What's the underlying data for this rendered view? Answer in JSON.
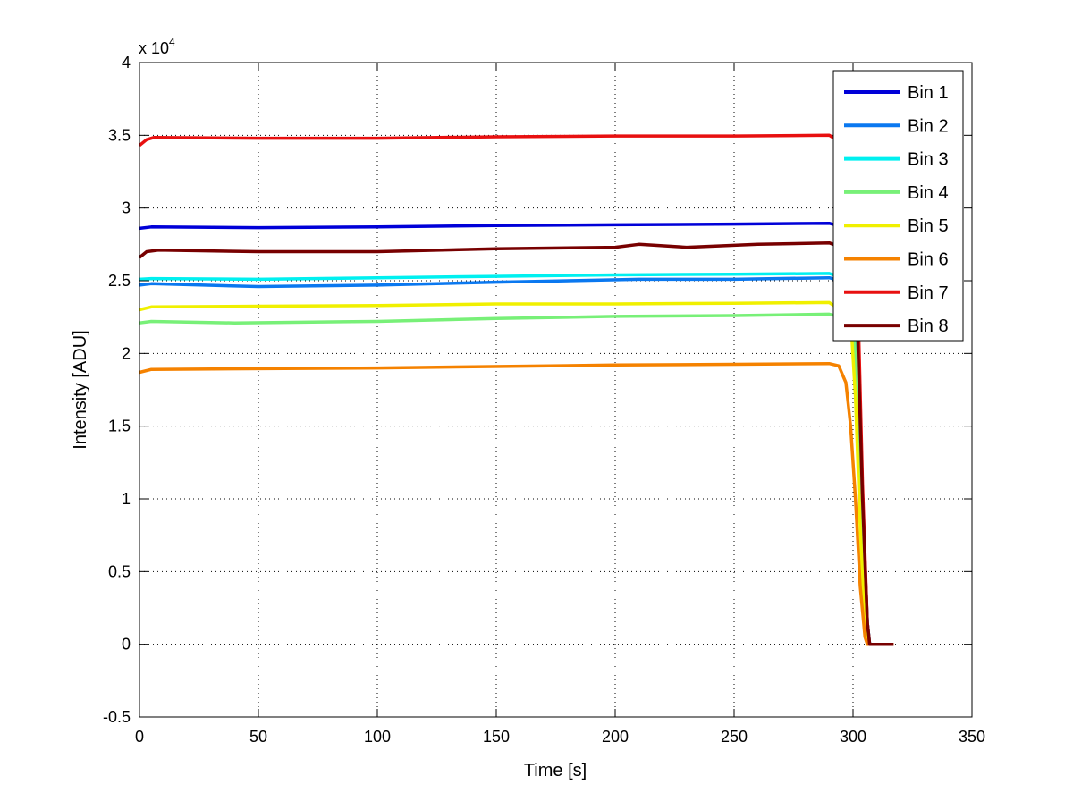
{
  "chart_data": {
    "type": "line",
    "title": "",
    "xlabel": "Time [s]",
    "ylabel": "Intensity [ADU]",
    "y_exponent_label": "x 10",
    "y_exponent": "4",
    "xlim": [
      0,
      350
    ],
    "ylim": [
      -5000,
      40000
    ],
    "xticks": [
      0,
      50,
      100,
      150,
      200,
      250,
      300,
      350
    ],
    "xtick_labels": [
      "0",
      "50",
      "100",
      "150",
      "200",
      "250",
      "300",
      "350"
    ],
    "yticks": [
      -5000,
      0,
      5000,
      10000,
      15000,
      20000,
      25000,
      30000,
      35000,
      40000
    ],
    "ytick_labels": [
      "-0.5",
      "0",
      "0.5",
      "1",
      "1.5",
      "2",
      "2.5",
      "3",
      "3.5",
      "4"
    ],
    "grid": true,
    "legend_position": "top-right",
    "series": [
      {
        "name": "Bin 1",
        "color": "#0000d8",
        "x": [
          0,
          5,
          50,
          100,
          150,
          200,
          250,
          290,
          300,
          302,
          304,
          306,
          307,
          317
        ],
        "y": [
          28600,
          28700,
          28650,
          28700,
          28800,
          28850,
          28900,
          28950,
          28500,
          22000,
          10000,
          1500,
          0,
          0
        ]
      },
      {
        "name": "Bin 2",
        "color": "#0a78f0",
        "x": [
          0,
          5,
          50,
          100,
          150,
          210,
          250,
          290,
          300,
          302,
          304,
          306,
          307,
          317
        ],
        "y": [
          24700,
          24800,
          24600,
          24700,
          24900,
          25100,
          25100,
          25200,
          24800,
          19000,
          9000,
          1500,
          0,
          0
        ]
      },
      {
        "name": "Bin 3",
        "color": "#00f0f0",
        "x": [
          0,
          5,
          50,
          100,
          150,
          200,
          250,
          290,
          300,
          302,
          304,
          306,
          307,
          317
        ],
        "y": [
          25100,
          25150,
          25100,
          25200,
          25300,
          25400,
          25450,
          25500,
          25000,
          19000,
          9000,
          1500,
          0,
          0
        ]
      },
      {
        "name": "Bin 4",
        "color": "#78f078",
        "x": [
          0,
          5,
          40,
          100,
          150,
          200,
          250,
          290,
          300,
          302,
          304,
          306,
          307,
          317
        ],
        "y": [
          22100,
          22200,
          22100,
          22200,
          22400,
          22550,
          22600,
          22700,
          22300,
          17000,
          8000,
          1200,
          0,
          0
        ]
      },
      {
        "name": "Bin 5",
        "color": "#f0f000",
        "x": [
          0,
          5,
          50,
          100,
          150,
          200,
          250,
          290,
          299,
          301,
          303,
          305,
          306,
          317
        ],
        "y": [
          23000,
          23200,
          23250,
          23300,
          23400,
          23400,
          23450,
          23500,
          22500,
          17000,
          8000,
          1000,
          0,
          0
        ]
      },
      {
        "name": "Bin 6",
        "color": "#f58200",
        "x": [
          0,
          5,
          100,
          200,
          250,
          290,
          294,
          297,
          299,
          301,
          303,
          305,
          306,
          317
        ],
        "y": [
          18700,
          18900,
          19000,
          19200,
          19250,
          19300,
          19150,
          18000,
          15000,
          10000,
          4000,
          500,
          0,
          0
        ]
      },
      {
        "name": "Bin 7",
        "color": "#e81010",
        "x": [
          0,
          3,
          6,
          50,
          100,
          150,
          200,
          250,
          290,
          300,
          302,
          304,
          306,
          307,
          317
        ],
        "y": [
          34300,
          34700,
          34850,
          34800,
          34800,
          34900,
          34950,
          34950,
          35000,
          34000,
          24000,
          11000,
          1500,
          0,
          0
        ]
      },
      {
        "name": "Bin 8",
        "color": "#780000",
        "x": [
          0,
          3,
          8,
          50,
          100,
          150,
          200,
          210,
          230,
          260,
          290,
          300,
          302,
          304,
          306,
          307,
          317
        ],
        "y": [
          26600,
          27000,
          27100,
          27000,
          27000,
          27200,
          27300,
          27500,
          27300,
          27500,
          27600,
          27000,
          21000,
          10000,
          1500,
          0,
          0
        ]
      }
    ]
  }
}
